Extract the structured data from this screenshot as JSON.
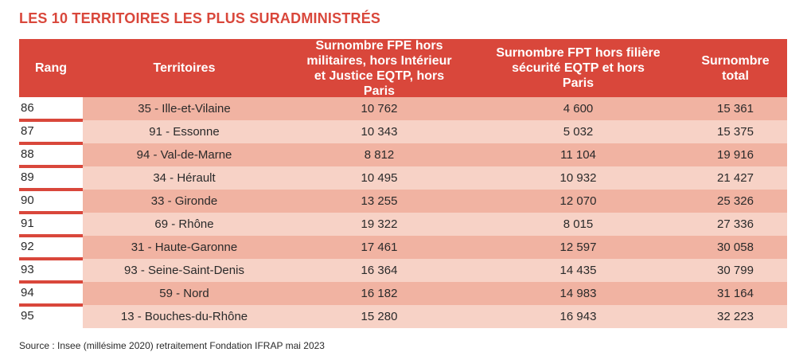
{
  "title": "LES 10 TERRITOIRES LES PLUS SURADMINISTRÉS",
  "colors": {
    "accent": "#d9473b",
    "row_dark": "#f1b3a2",
    "row_light": "#f7d2c6"
  },
  "headers": {
    "rang": "Rang",
    "territoires": "Territoires",
    "fpe": "Surnombre FPE hors militaires, hors Intérieur et Justice EQTP, hors Paris",
    "fpt": "Surnombre FPT hors filière sécurité EQTP et hors Paris",
    "total": "Surnombre total"
  },
  "rows": [
    {
      "rang": "86",
      "territoire": "35 - Ille-et-Vilaine",
      "fpe": "10 762",
      "fpt": "4 600",
      "total": "15 361"
    },
    {
      "rang": "87",
      "territoire": "91 - Essonne",
      "fpe": "10 343",
      "fpt": "5 032",
      "total": "15 375"
    },
    {
      "rang": "88",
      "territoire": "94 - Val-de-Marne",
      "fpe": "8 812",
      "fpt": "11 104",
      "total": "19 916"
    },
    {
      "rang": "89",
      "territoire": "34 - Hérault",
      "fpe": "10 495",
      "fpt": "10 932",
      "total": "21 427"
    },
    {
      "rang": "90",
      "territoire": "33 - Gironde",
      "fpe": "13 255",
      "fpt": "12 070",
      "total": "25 326"
    },
    {
      "rang": "91",
      "territoire": "69 - Rhône",
      "fpe": "19 322",
      "fpt": "8 015",
      "total": "27 336"
    },
    {
      "rang": "92",
      "territoire": "31 - Haute-Garonne",
      "fpe": "17 461",
      "fpt": "12 597",
      "total": "30 058"
    },
    {
      "rang": "93",
      "territoire": "93 - Seine-Saint-Denis",
      "fpe": "16 364",
      "fpt": "14 435",
      "total": "30 799"
    },
    {
      "rang": "94",
      "territoire": "59 - Nord",
      "fpe": "16 182",
      "fpt": "14 983",
      "total": "31 164"
    },
    {
      "rang": "95",
      "territoire": "13 - Bouches-du-Rhône",
      "fpe": "15 280",
      "fpt": "16 943",
      "total": "32 223"
    }
  ],
  "source": "Source : Insee (millésime 2020) retraitement Fondation IFRAP mai 2023"
}
